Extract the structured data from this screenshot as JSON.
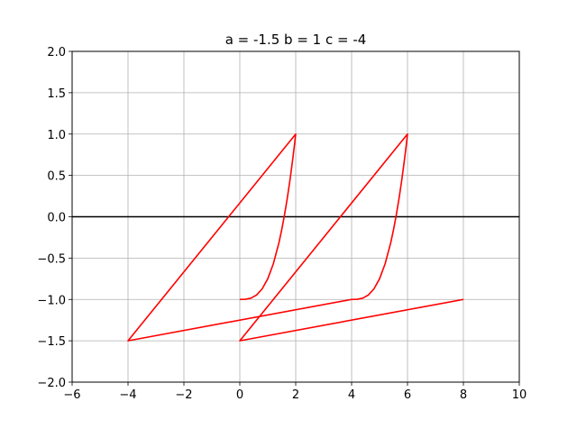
{
  "chart_data": {
    "type": "line",
    "title": "a = -1.5 b = 1 c = -4",
    "xlabel": "",
    "ylabel": "",
    "xlim": [
      -6,
      10
    ],
    "ylim": [
      -2,
      2
    ],
    "xticks": [
      -6,
      -4,
      -2,
      0,
      2,
      4,
      6,
      8,
      10
    ],
    "yticks": [
      -2.0,
      -1.5,
      -1.0,
      -0.5,
      0.0,
      0.5,
      1.0,
      1.5,
      2.0
    ],
    "xtick_labels": [
      "−6",
      "−4",
      "−2",
      "0",
      "2",
      "4",
      "6",
      "8",
      "10"
    ],
    "ytick_labels": [
      "−2.0",
      "−1.5",
      "−1.0",
      "−0.5",
      "0.0",
      "0.5",
      "1.0",
      "1.5",
      "2.0"
    ],
    "grid": true,
    "reference_line": {
      "y": 0,
      "color": "#000000"
    },
    "series": [
      {
        "color": "#ff0000",
        "x": [
          0.0,
          0.2,
          0.4,
          0.6,
          0.8,
          1.0,
          1.2,
          1.4,
          1.5,
          1.6,
          1.7,
          1.8,
          1.9,
          1.96,
          2.0,
          -4.0,
          4.0,
          4.2,
          4.4,
          4.6,
          4.8,
          5.0,
          5.2,
          5.4,
          5.5,
          5.6,
          5.7,
          5.8,
          5.9,
          5.96,
          6.0,
          0.0,
          8.0
        ],
        "y": [
          -1.0,
          -0.998,
          -0.984,
          -0.946,
          -0.872,
          -0.75,
          -0.568,
          -0.314,
          -0.156,
          0.024,
          0.228,
          0.456,
          0.714,
          0.882,
          1.0,
          -1.5,
          -1.0,
          -0.998,
          -0.984,
          -0.946,
          -0.872,
          -0.75,
          -0.568,
          -0.314,
          -0.156,
          0.024,
          0.228,
          0.456,
          0.714,
          0.882,
          1.0,
          -1.5,
          -1.0
        ]
      }
    ]
  }
}
